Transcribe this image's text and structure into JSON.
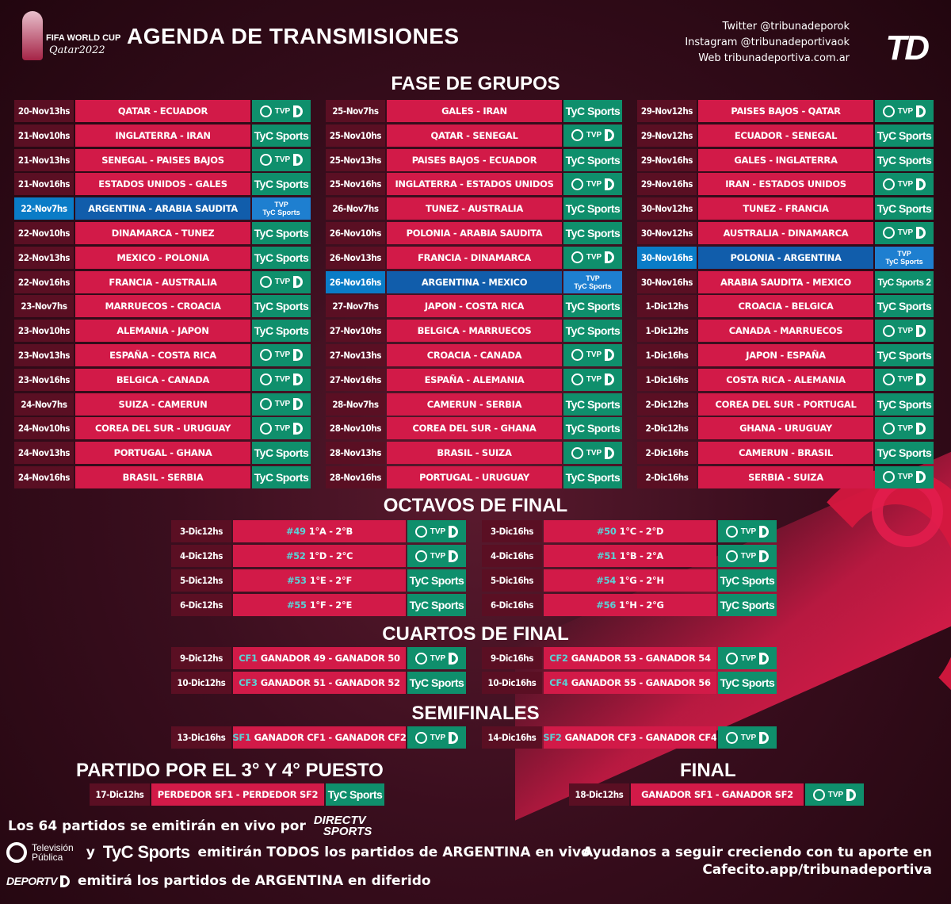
{
  "header": {
    "wc_line1": "FIFA WORLD CUP",
    "wc_line2": "Qatar2022",
    "title": "AGENDA DE TRANSMISIONES",
    "social": [
      "Twitter @tribunadeporok",
      "Instagram @tribunadeportivaok",
      "Web tribunadeportiva.com.ar"
    ],
    "td_logo": "TD"
  },
  "sections": {
    "groups": "FASE DE GRUPOS",
    "octavos": "OCTAVOS DE FINAL",
    "cuartos": "CUARTOS DE FINAL",
    "semis": "SEMIFINALES",
    "third": "PARTIDO POR EL 3° Y 4° PUESTO",
    "final": "FINAL"
  },
  "channels": {
    "tyc": "TyC Sports",
    "tyc2": "TyC Sports 2",
    "tvp": "TVP",
    "tvp_tyc_a": "TVP",
    "tvp_tyc_b": "TyC Sports"
  },
  "groups": [
    [
      {
        "d": "20-Nov13hs",
        "m": "QATAR - ECUADOR",
        "c": "tvp"
      },
      {
        "d": "21-Nov10hs",
        "m": "INGLATERRA - IRAN",
        "c": "tyc"
      },
      {
        "d": "21-Nov13hs",
        "m": "SENEGAL - PAISES BAJOS",
        "c": "tvp"
      },
      {
        "d": "21-Nov16hs",
        "m": "ESTADOS UNIDOS - GALES",
        "c": "tyc"
      },
      {
        "d": "22-Nov7hs",
        "m": "ARGENTINA - ARABIA SAUDITA",
        "c": "both",
        "arg": true
      },
      {
        "d": "22-Nov10hs",
        "m": "DINAMARCA - TUNEZ",
        "c": "tyc"
      },
      {
        "d": "22-Nov13hs",
        "m": "MEXICO - POLONIA",
        "c": "tyc"
      },
      {
        "d": "22-Nov16hs",
        "m": "FRANCIA - AUSTRALIA",
        "c": "tvp"
      },
      {
        "d": "23-Nov7hs",
        "m": "MARRUECOS - CROACIA",
        "c": "tyc"
      },
      {
        "d": "23-Nov10hs",
        "m": "ALEMANIA - JAPON",
        "c": "tyc"
      },
      {
        "d": "23-Nov13hs",
        "m": "ESPAÑA - COSTA RICA",
        "c": "tvp"
      },
      {
        "d": "23-Nov16hs",
        "m": "BELGICA - CANADA",
        "c": "tvp"
      },
      {
        "d": "24-Nov7hs",
        "m": "SUIZA - CAMERUN",
        "c": "tvp"
      },
      {
        "d": "24-Nov10hs",
        "m": "COREA DEL SUR - URUGUAY",
        "c": "tvp"
      },
      {
        "d": "24-Nov13hs",
        "m": "PORTUGAL - GHANA",
        "c": "tyc"
      },
      {
        "d": "24-Nov16hs",
        "m": "BRASIL - SERBIA",
        "c": "tyc"
      }
    ],
    [
      {
        "d": "25-Nov7hs",
        "m": "GALES - IRAN",
        "c": "tyc"
      },
      {
        "d": "25-Nov10hs",
        "m": "QATAR - SENEGAL",
        "c": "tvp"
      },
      {
        "d": "25-Nov13hs",
        "m": "PAISES BAJOS - ECUADOR",
        "c": "tyc"
      },
      {
        "d": "25-Nov16hs",
        "m": "INGLATERRA - ESTADOS UNIDOS",
        "c": "tvp"
      },
      {
        "d": "26-Nov7hs",
        "m": "TUNEZ - AUSTRALIA",
        "c": "tyc"
      },
      {
        "d": "26-Nov10hs",
        "m": "POLONIA - ARABIA SAUDITA",
        "c": "tyc"
      },
      {
        "d": "26-Nov13hs",
        "m": "FRANCIA - DINAMARCA",
        "c": "tvp"
      },
      {
        "d": "26-Nov16hs",
        "m": "ARGENTINA - MEXICO",
        "c": "both",
        "arg": true
      },
      {
        "d": "27-Nov7hs",
        "m": "JAPON - COSTA RICA",
        "c": "tyc"
      },
      {
        "d": "27-Nov10hs",
        "m": "BELGICA - MARRUECOS",
        "c": "tyc"
      },
      {
        "d": "27-Nov13hs",
        "m": "CROACIA - CANADA",
        "c": "tvp"
      },
      {
        "d": "27-Nov16hs",
        "m": "ESPAÑA - ALEMANIA",
        "c": "tvp"
      },
      {
        "d": "28-Nov7hs",
        "m": "CAMERUN - SERBIA",
        "c": "tyc"
      },
      {
        "d": "28-Nov10hs",
        "m": "COREA DEL SUR - GHANA",
        "c": "tyc"
      },
      {
        "d": "28-Nov13hs",
        "m": "BRASIL - SUIZA",
        "c": "tvp"
      },
      {
        "d": "28-Nov16hs",
        "m": "PORTUGAL - URUGUAY",
        "c": "tyc"
      }
    ],
    [
      {
        "d": "29-Nov12hs",
        "m": "PAISES BAJOS - QATAR",
        "c": "tvp"
      },
      {
        "d": "29-Nov12hs",
        "m": "ECUADOR - SENEGAL",
        "c": "tyc"
      },
      {
        "d": "29-Nov16hs",
        "m": "GALES - INGLATERRA",
        "c": "tyc"
      },
      {
        "d": "29-Nov16hs",
        "m": "IRAN - ESTADOS UNIDOS",
        "c": "tvp"
      },
      {
        "d": "30-Nov12hs",
        "m": "TUNEZ - FRANCIA",
        "c": "tyc"
      },
      {
        "d": "30-Nov12hs",
        "m": "AUSTRALIA - DINAMARCA",
        "c": "tvp"
      },
      {
        "d": "30-Nov16hs",
        "m": "POLONIA - ARGENTINA",
        "c": "both",
        "arg": true
      },
      {
        "d": "30-Nov16hs",
        "m": "ARABIA SAUDITA - MEXICO",
        "c": "tyc2"
      },
      {
        "d": "1-Dic12hs",
        "m": "CROACIA - BELGICA",
        "c": "tyc"
      },
      {
        "d": "1-Dic12hs",
        "m": "CANADA - MARRUECOS",
        "c": "tvp"
      },
      {
        "d": "1-Dic16hs",
        "m": "JAPON - ESPAÑA",
        "c": "tyc"
      },
      {
        "d": "1-Dic16hs",
        "m": "COSTA RICA - ALEMANIA",
        "c": "tvp"
      },
      {
        "d": "2-Dic12hs",
        "m": "COREA DEL SUR - PORTUGAL",
        "c": "tyc"
      },
      {
        "d": "2-Dic12hs",
        "m": "GHANA - URUGUAY",
        "c": "tvp"
      },
      {
        "d": "2-Dic16hs",
        "m": "CAMERUN - BRASIL",
        "c": "tyc"
      },
      {
        "d": "2-Dic16hs",
        "m": "SERBIA - SUIZA",
        "c": "tvp"
      }
    ]
  ],
  "octavos": [
    [
      {
        "d": "3-Dic12hs",
        "code": "#49",
        "m": "1°A - 2°B",
        "c": "tvp"
      },
      {
        "d": "4-Dic12hs",
        "code": "#52",
        "m": "1°D - 2°C",
        "c": "tvp"
      },
      {
        "d": "5-Dic12hs",
        "code": "#53",
        "m": "1°E - 2°F",
        "c": "tyc"
      },
      {
        "d": "6-Dic12hs",
        "code": "#55",
        "m": "1°F - 2°E",
        "c": "tyc"
      }
    ],
    [
      {
        "d": "3-Dic16hs",
        "code": "#50",
        "m": "1°C - 2°D",
        "c": "tvp"
      },
      {
        "d": "4-Dic16hs",
        "code": "#51",
        "m": "1°B - 2°A",
        "c": "tvp"
      },
      {
        "d": "5-Dic16hs",
        "code": "#54",
        "m": "1°G - 2°H",
        "c": "tyc"
      },
      {
        "d": "6-Dic16hs",
        "code": "#56",
        "m": "1°H - 2°G",
        "c": "tyc"
      }
    ]
  ],
  "cuartos": [
    [
      {
        "d": "9-Dic12hs",
        "code": "CF1",
        "m": "GANADOR 49 - GANADOR 50",
        "c": "tvp"
      },
      {
        "d": "10-Dic12hs",
        "code": "CF3",
        "m": "GANADOR 51 - GANADOR 52",
        "c": "tyc"
      }
    ],
    [
      {
        "d": "9-Dic16hs",
        "code": "CF2",
        "m": "GANADOR 53 - GANADOR 54",
        "c": "tvp"
      },
      {
        "d": "10-Dic16hs",
        "code": "CF4",
        "m": "GANADOR 55 - GANADOR 56",
        "c": "tyc"
      }
    ]
  ],
  "semis": [
    {
      "d": "13-Dic16hs",
      "code": "SF1",
      "m": "GANADOR CF1 - GANADOR CF2",
      "c": "tvp"
    },
    {
      "d": "14-Dic16hs",
      "code": "SF2",
      "m": "GANADOR CF3 - GANADOR CF4",
      "c": "tvp"
    }
  ],
  "third": {
    "d": "17-Dic12hs",
    "m": "PERDEDOR SF1 - PERDEDOR SF2",
    "c": "tyc"
  },
  "final": {
    "d": "18-Dic12hs",
    "m": "GANADOR SF1 - GANADOR SF2",
    "c": "tvp"
  },
  "footer": {
    "line1": "Los 64 partidos se emitirán en vivo por",
    "directv_a": "DIRECTV",
    "directv_b": "SPORTS",
    "tvp_a": "Televisión",
    "tvp_b": "Pública",
    "y": "y",
    "tyc": "TyC Sports",
    "line2": "emitirán TODOS los partidos de ARGENTINA en vivo",
    "deportv": "DEPORTV",
    "line3": "emitirá los partidos de ARGENTINA en diferido",
    "cafe1": "Ayudanos a seguir creciendo con tu aporte en",
    "cafe2": "Cafecito.app/tribunadeportiva"
  },
  "colors": {
    "date_bg": "#5a0f23",
    "match_bg": "#d21a48",
    "channel_bg": "#0f8f6c",
    "argentina_bg": "#115dab",
    "code_text": "#5ad2d6"
  }
}
